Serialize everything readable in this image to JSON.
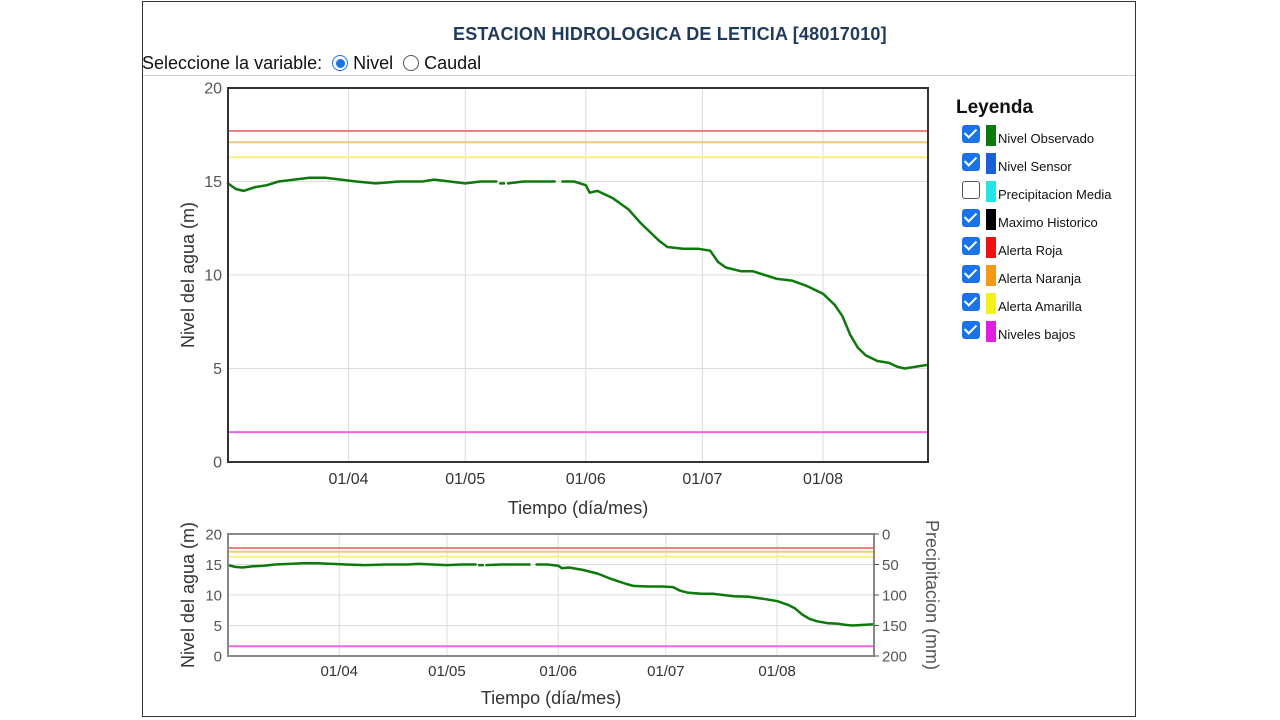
{
  "title": "ESTACION HIDROLOGICA DE LETICIA [48017010]",
  "selector": {
    "label": "Seleccione la variable:",
    "options": [
      {
        "label": "Nivel",
        "checked": true
      },
      {
        "label": "Caudal",
        "checked": false
      }
    ]
  },
  "legend": {
    "title": "Leyenda",
    "items": [
      {
        "label": "Nivel Observado",
        "color": "#0b7a0b",
        "checked": true
      },
      {
        "label": "Nivel Sensor",
        "color": "#1a5fd6",
        "checked": true
      },
      {
        "label": "Precipitacion Media",
        "color": "#22e6e6",
        "checked": false
      },
      {
        "label": "Maximo Historico",
        "color": "#000000",
        "checked": true
      },
      {
        "label": "Alerta Roja",
        "color": "#ee1111",
        "checked": true
      },
      {
        "label": "Alerta Naranja",
        "color": "#f39a12",
        "checked": true
      },
      {
        "label": "Alerta Amarilla",
        "color": "#f5ef1a",
        "checked": true
      },
      {
        "label": "Niveles bajos",
        "color": "#e11ee1",
        "checked": true
      }
    ]
  },
  "chart_data": [
    {
      "type": "line",
      "xlabel": "Tiempo (día/mes)",
      "ylabel": "Nivel del agua (m)",
      "ylim": [
        0,
        20
      ],
      "yticks": [
        "0",
        "5",
        "10",
        "15",
        "20"
      ],
      "xlim": [
        "2022-03-01",
        "2022-08-28"
      ],
      "xticks": [
        {
          "date": "2022-04-01",
          "label": "01/04"
        },
        {
          "date": "2022-05-01",
          "label": "01/05"
        },
        {
          "date": "2022-06-01",
          "label": "01/06"
        },
        {
          "date": "2022-07-01",
          "label": "01/07"
        },
        {
          "date": "2022-08-01",
          "label": "01/08"
        }
      ],
      "grid": true,
      "thresholds": [
        {
          "name": "Alerta Roja",
          "value": 17.7,
          "color": "#f08080"
        },
        {
          "name": "Alerta Naranja",
          "value": 17.1,
          "color": "#f5c580"
        },
        {
          "name": "Alerta Amarilla",
          "value": 16.3,
          "color": "#f5f080"
        },
        {
          "name": "Niveles bajos",
          "value": 1.6,
          "color": "#ee66ee"
        }
      ],
      "series": [
        {
          "name": "Nivel Observado",
          "color": "#0b7a0b",
          "segments": [
            [
              [
                "2022-03-01",
                14.9
              ],
              [
                "2022-03-03",
                14.6
              ],
              [
                "2022-03-05",
                14.5
              ],
              [
                "2022-03-08",
                14.7
              ],
              [
                "2022-03-11",
                14.8
              ],
              [
                "2022-03-14",
                15.0
              ],
              [
                "2022-03-18",
                15.1
              ],
              [
                "2022-03-22",
                15.2
              ],
              [
                "2022-03-26",
                15.2
              ],
              [
                "2022-03-30",
                15.1
              ],
              [
                "2022-04-03",
                15.0
              ],
              [
                "2022-04-08",
                14.9
              ],
              [
                "2022-04-14",
                15.0
              ],
              [
                "2022-04-20",
                15.0
              ],
              [
                "2022-04-23",
                15.1
              ],
              [
                "2022-04-27",
                15.0
              ],
              [
                "2022-05-01",
                14.9
              ],
              [
                "2022-05-05",
                15.0
              ],
              [
                "2022-05-09",
                15.0
              ]
            ],
            [
              [
                "2022-05-10",
                14.9
              ],
              [
                "2022-05-11",
                14.9
              ]
            ],
            [
              [
                "2022-05-12",
                14.9
              ],
              [
                "2022-05-16",
                15.0
              ],
              [
                "2022-05-20",
                15.0
              ],
              [
                "2022-05-24",
                15.0
              ]
            ],
            [
              [
                "2022-05-26",
                15.0
              ],
              [
                "2022-05-29",
                15.0
              ],
              [
                "2022-06-01",
                14.8
              ],
              [
                "2022-06-02",
                14.4
              ],
              [
                "2022-06-04",
                14.5
              ],
              [
                "2022-06-08",
                14.1
              ],
              [
                "2022-06-12",
                13.5
              ],
              [
                "2022-06-15",
                12.8
              ],
              [
                "2022-06-17",
                12.4
              ],
              [
                "2022-06-20",
                11.8
              ],
              [
                "2022-06-22",
                11.5
              ],
              [
                "2022-06-26",
                11.4
              ],
              [
                "2022-06-30",
                11.4
              ],
              [
                "2022-07-03",
                11.3
              ],
              [
                "2022-07-05",
                10.7
              ],
              [
                "2022-07-07",
                10.4
              ],
              [
                "2022-07-11",
                10.2
              ],
              [
                "2022-07-14",
                10.2
              ],
              [
                "2022-07-17",
                10.0
              ],
              [
                "2022-07-20",
                9.8
              ],
              [
                "2022-07-24",
                9.7
              ],
              [
                "2022-07-28",
                9.4
              ],
              [
                "2022-08-01",
                9.0
              ],
              [
                "2022-08-04",
                8.4
              ],
              [
                "2022-08-06",
                7.8
              ],
              [
                "2022-08-08",
                6.8
              ],
              [
                "2022-08-10",
                6.1
              ],
              [
                "2022-08-12",
                5.7
              ],
              [
                "2022-08-15",
                5.4
              ],
              [
                "2022-08-18",
                5.3
              ],
              [
                "2022-08-20",
                5.1
              ],
              [
                "2022-08-22",
                5.0
              ],
              [
                "2022-08-25",
                5.1
              ],
              [
                "2022-08-28",
                5.2
              ]
            ]
          ]
        }
      ]
    },
    {
      "type": "line",
      "xlabel": "Tiempo (día/mes)",
      "ylabel": "Nivel del agua (m)",
      "y2label": "Precipitacion (mm)",
      "ylim": [
        0,
        20
      ],
      "yticks": [
        "0",
        "5",
        "10",
        "15",
        "20"
      ],
      "y2lim": [
        200,
        0
      ],
      "y2ticks": [
        "0",
        "50",
        "100",
        "150",
        "200"
      ],
      "xlim": [
        "2022-03-01",
        "2022-08-28"
      ],
      "xticks": [
        {
          "date": "2022-04-01",
          "label": "01/04"
        },
        {
          "date": "2022-05-01",
          "label": "01/05"
        },
        {
          "date": "2022-06-01",
          "label": "01/06"
        },
        {
          "date": "2022-07-01",
          "label": "01/07"
        },
        {
          "date": "2022-08-01",
          "label": "01/08"
        }
      ],
      "grid": true,
      "note": "overview of same series"
    }
  ]
}
